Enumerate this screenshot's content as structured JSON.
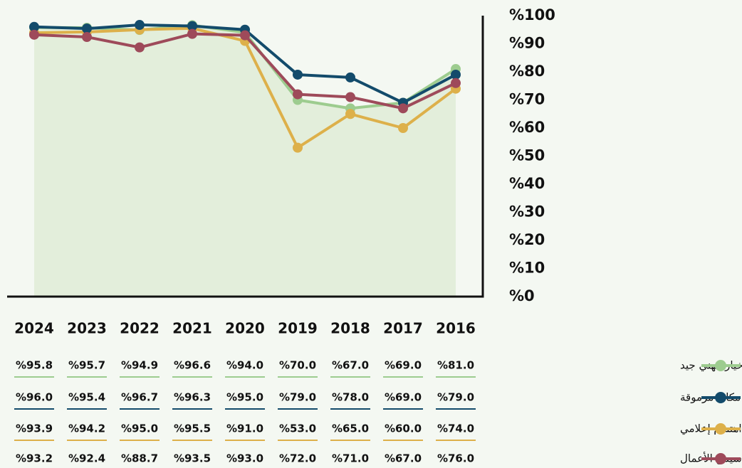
{
  "chart_data": {
    "type": "line",
    "categories": [
      "2024",
      "2023",
      "2022",
      "2021",
      "2020",
      "2019",
      "2018",
      "2017",
      "2016"
    ],
    "ylim": [
      0,
      100
    ],
    "yticks": [
      {
        "value": 0,
        "label": "%0"
      },
      {
        "value": 10,
        "label": "%10"
      },
      {
        "value": 20,
        "label": "%20"
      },
      {
        "value": 30,
        "label": "%30"
      },
      {
        "value": 40,
        "label": "%40"
      },
      {
        "value": 50,
        "label": "%50"
      },
      {
        "value": 60,
        "label": "%60"
      },
      {
        "value": 70,
        "label": "%70"
      },
      {
        "value": 80,
        "label": "%80"
      },
      {
        "value": 90,
        "label": "%90"
      },
      {
        "value": 100,
        "label": "%100"
      }
    ],
    "area_series": 0,
    "series": [
      {
        "name": "خيار مهني جيد",
        "color": "#9dcc8f",
        "values": [
          95.8,
          95.7,
          94.9,
          96.6,
          94.0,
          70.0,
          67.0,
          69.0,
          81.0
        ],
        "value_labels": [
          "%95.8",
          "%95.7",
          "%94.9",
          "%96.6",
          "%94.0",
          "%70.0",
          "%67.0",
          "%69.0",
          "%81.0"
        ]
      },
      {
        "name": "مكانة مرموقة",
        "color": "#134b6b",
        "values": [
          96.0,
          95.4,
          96.7,
          96.3,
          95.0,
          79.0,
          78.0,
          69.0,
          79.0
        ],
        "value_labels": [
          "%96.0",
          "%95.4",
          "%96.7",
          "%96.3",
          "%95.0",
          "%79.0",
          "%78.0",
          "%69.0",
          "%79.0"
        ]
      },
      {
        "name": "اهتمام إعلامي",
        "color": "#ddb04a",
        "values": [
          93.9,
          94.2,
          95.0,
          95.5,
          91.0,
          53.0,
          65.0,
          60.0,
          74.0
        ],
        "value_labels": [
          "%93.9",
          "%94.2",
          "%95.0",
          "%95.5",
          "%91.0",
          "%53.0",
          "%65.0",
          "%60.0",
          "%74.0"
        ]
      },
      {
        "name": "سهولة تأسيس الأعمال",
        "color": "#9e4a5a",
        "values": [
          93.2,
          92.4,
          88.7,
          93.5,
          93.0,
          72.0,
          71.0,
          67.0,
          76.0
        ],
        "value_labels": [
          "%93.2",
          "%92.4",
          "%88.7",
          "%93.5",
          "%93.0",
          "%72.0",
          "%71.0",
          "%67.0",
          "%76.0"
        ]
      }
    ]
  }
}
